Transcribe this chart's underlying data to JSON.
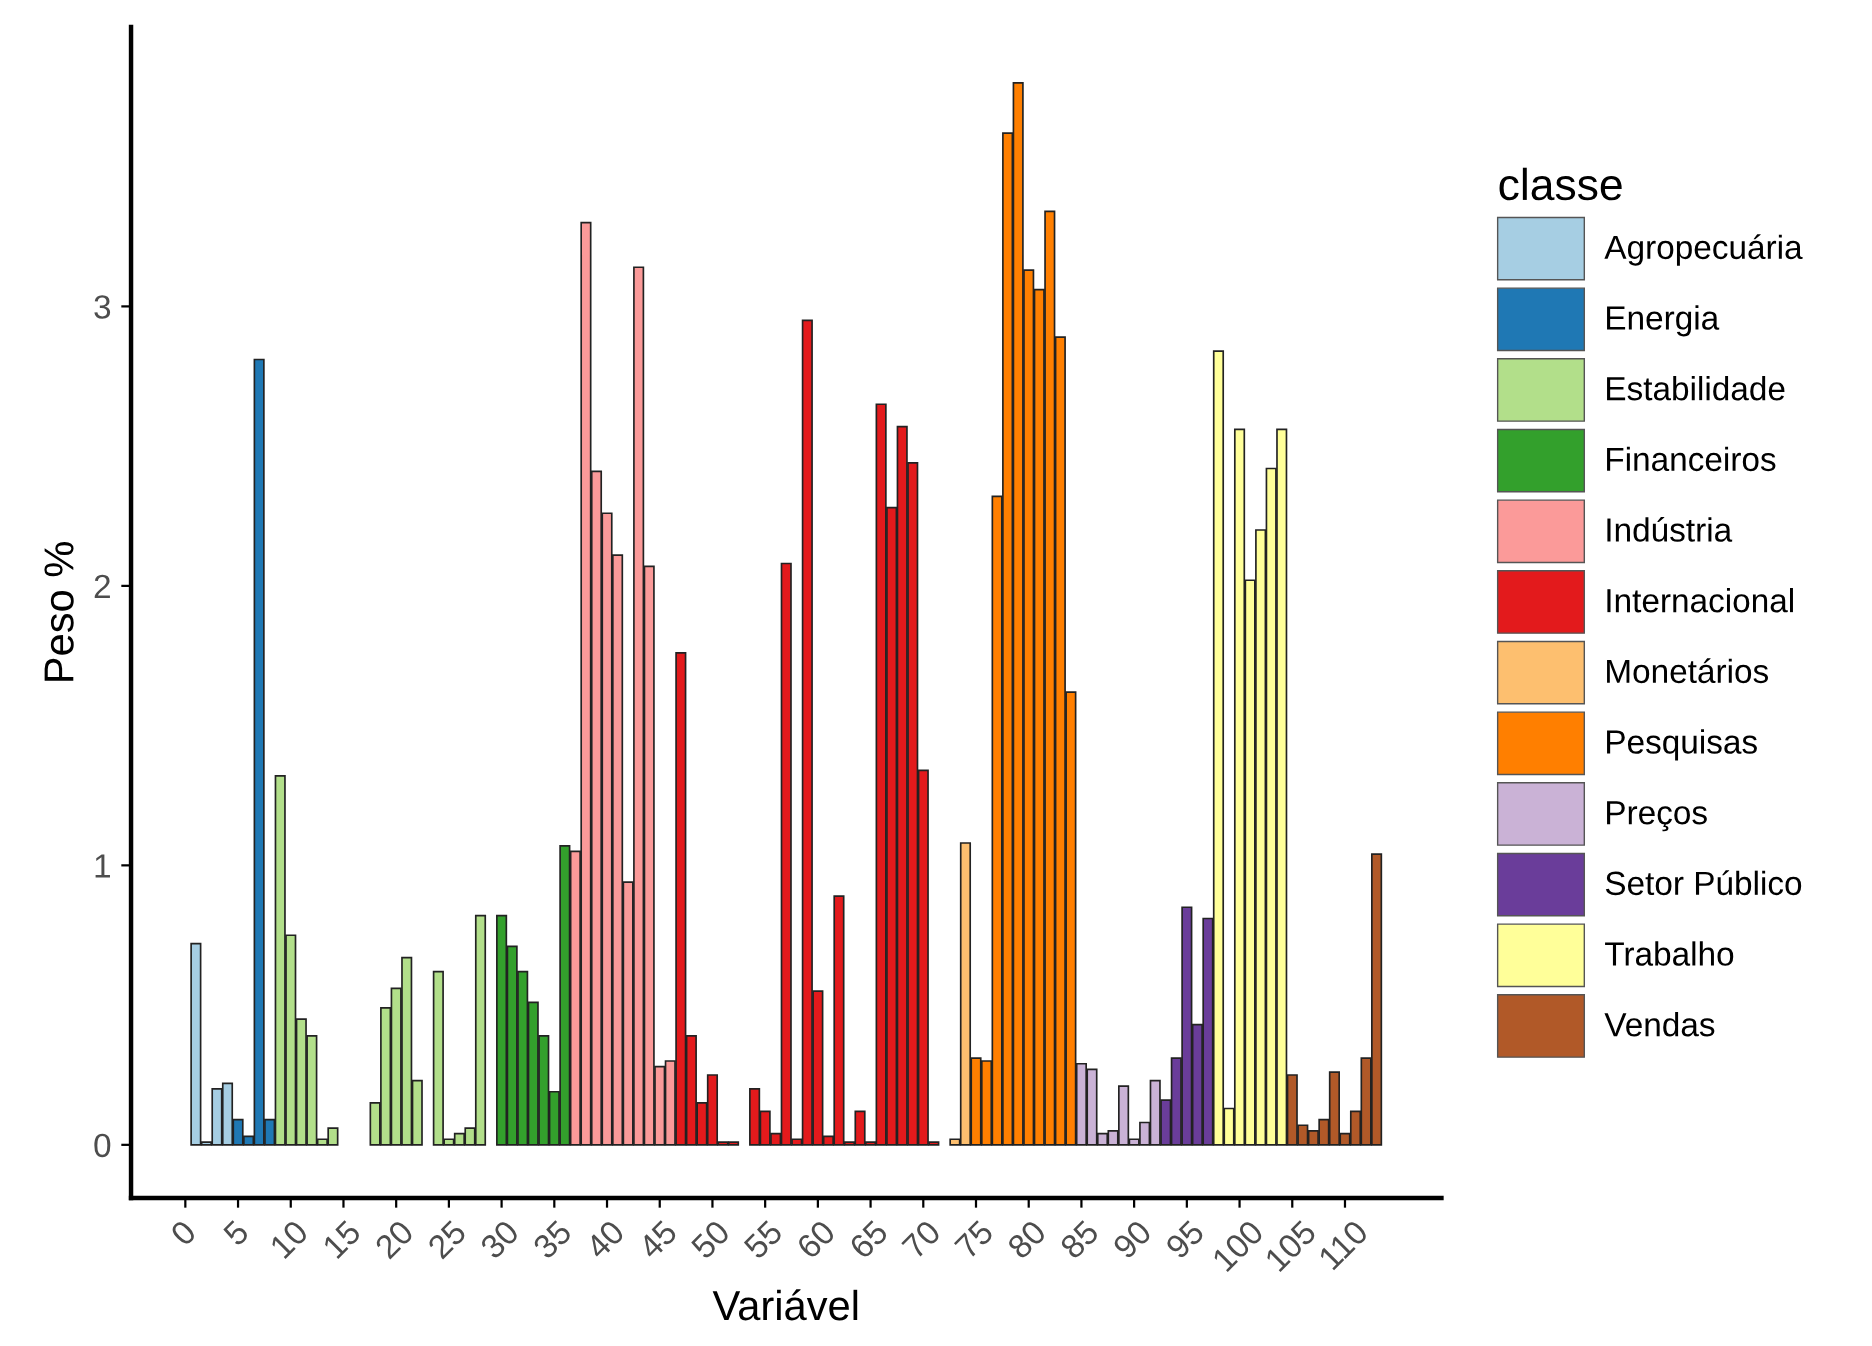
{
  "chart_data": {
    "type": "bar",
    "xlabel": "Variável",
    "ylabel": "Peso %",
    "legend_title": "classe",
    "legend": "right",
    "grid": false,
    "xlim": [
      -5.15,
      119.15
    ],
    "ylim": [
      -0.19,
      4.0
    ],
    "xticks": [
      0,
      5,
      10,
      15,
      20,
      25,
      30,
      35,
      40,
      45,
      50,
      55,
      60,
      65,
      70,
      75,
      80,
      85,
      90,
      95,
      100,
      105,
      110
    ],
    "yticks": [
      0,
      1,
      2,
      3
    ],
    "series": [
      {
        "name": "Agropecuária",
        "color": "#a6cee3",
        "x": [
          1,
          2,
          3,
          4
        ],
        "values": [
          0.72,
          0.01,
          0.2,
          0.22
        ]
      },
      {
        "name": "Energia",
        "color": "#1f78b4",
        "x": [
          5,
          6,
          7,
          8
        ],
        "values": [
          0.09,
          0.03,
          2.81,
          0.09
        ]
      },
      {
        "name": "Estabilidade",
        "color": "#b2df8a",
        "x": [
          9,
          10,
          11,
          12,
          13,
          14,
          15,
          16,
          17,
          18,
          19,
          20,
          21,
          22,
          23,
          24,
          25,
          26,
          27,
          28
        ],
        "values": [
          1.32,
          0.75,
          0.45,
          0.39,
          0.02,
          0.06,
          null,
          null,
          null,
          0.15,
          0.49,
          0.56,
          0.67,
          0.23,
          null,
          0.62,
          0.02,
          0.04,
          0.06,
          0.82
        ]
      },
      {
        "name": "Financeiros",
        "color": "#33a02c",
        "x": [
          30,
          31,
          32,
          33,
          34,
          35,
          36
        ],
        "values": [
          0.82,
          0.71,
          0.62,
          0.51,
          0.39,
          0.19,
          1.07
        ]
      },
      {
        "name": "Indústria",
        "color": "#fb9a99",
        "x": [
          37,
          38,
          39,
          40,
          41,
          42,
          43,
          44,
          45,
          46
        ],
        "values": [
          1.05,
          3.3,
          2.41,
          2.26,
          2.11,
          0.94,
          3.14,
          2.07,
          0.28,
          0.3
        ]
      },
      {
        "name": "Internacional",
        "color": "#e31a1c",
        "x": [
          47,
          48,
          49,
          50,
          51,
          52,
          53,
          54,
          55,
          56,
          57,
          58,
          59,
          60,
          61,
          62,
          63,
          64,
          65,
          66,
          67,
          68,
          69,
          70,
          71
        ],
        "values": [
          1.76,
          0.39,
          0.15,
          0.25,
          0.01,
          0.01,
          null,
          0.2,
          0.12,
          0.04,
          2.08,
          0.02,
          2.95,
          0.55,
          0.03,
          0.89,
          0.01,
          0.12,
          0.01,
          2.65,
          2.28,
          2.57,
          2.44,
          1.34,
          0.01
        ]
      },
      {
        "name": "Monetários",
        "color": "#fdbf6f",
        "x": [
          73,
          74
        ],
        "values": [
          0.02,
          1.08
        ]
      },
      {
        "name": "Pesquisas",
        "color": "#ff7f00",
        "x": [
          75,
          76,
          77,
          78,
          79,
          80,
          81,
          82,
          83,
          84
        ],
        "values": [
          0.31,
          0.3,
          2.32,
          3.62,
          3.8,
          3.13,
          3.06,
          3.34,
          2.89,
          1.62
        ]
      },
      {
        "name": "Preços",
        "color": "#cab2d6",
        "x": [
          85,
          86,
          87,
          88,
          89,
          90,
          91,
          92
        ],
        "values": [
          0.29,
          0.27,
          0.04,
          0.05,
          0.21,
          0.02,
          0.08,
          0.23
        ]
      },
      {
        "name": "Setor Público",
        "color": "#6a3d9a",
        "x": [
          93,
          94,
          95,
          96,
          97
        ],
        "values": [
          0.16,
          0.31,
          0.85,
          0.43,
          0.81
        ]
      },
      {
        "name": "Trabalho",
        "color": "#ffff99",
        "x": [
          98,
          99,
          100,
          101,
          102,
          103,
          104
        ],
        "values": [
          2.84,
          0.13,
          2.56,
          2.02,
          2.2,
          2.42,
          2.56
        ]
      },
      {
        "name": "Vendas",
        "color": "#b15928",
        "x": [
          105,
          106,
          107,
          108,
          109,
          110,
          111,
          112,
          113
        ],
        "values": [
          0.25,
          0.07,
          0.05,
          0.09,
          0.26,
          0.04,
          0.12,
          0.31,
          1.04
        ]
      }
    ]
  }
}
